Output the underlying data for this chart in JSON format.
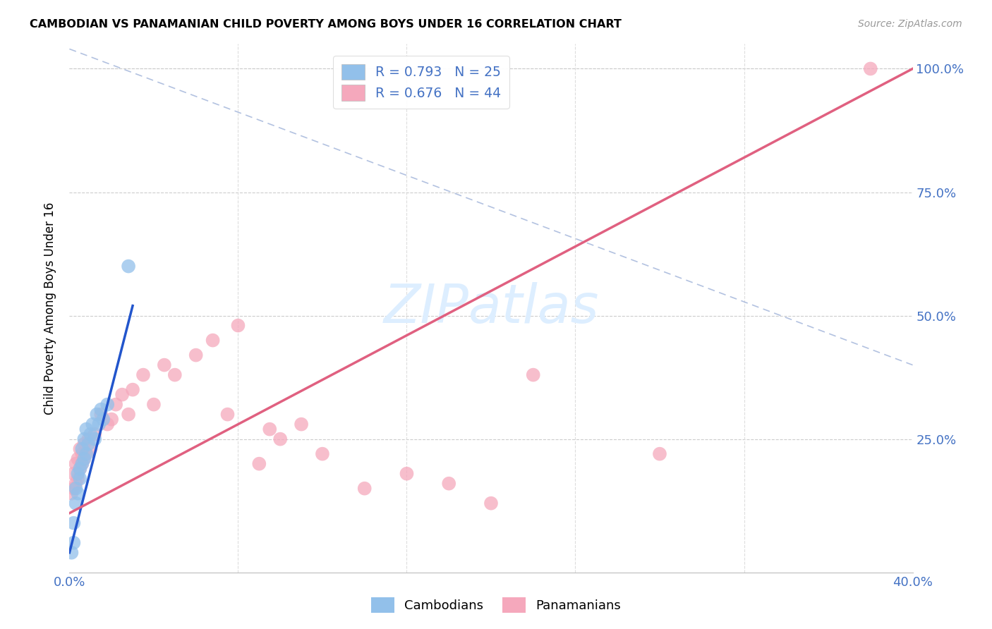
{
  "title": "CAMBODIAN VS PANAMANIAN CHILD POVERTY AMONG BOYS UNDER 16 CORRELATION CHART",
  "source": "Source: ZipAtlas.com",
  "ylabel": "Child Poverty Among Boys Under 16",
  "xlim": [
    0.0,
    0.4
  ],
  "ylim": [
    -0.02,
    1.05
  ],
  "xtick_positions": [
    0.0,
    0.08,
    0.16,
    0.24,
    0.32,
    0.4
  ],
  "xtick_labels": [
    "0.0%",
    "",
    "",
    "",
    "",
    "40.0%"
  ],
  "ytick_positions": [
    0.0,
    0.25,
    0.5,
    0.75,
    1.0
  ],
  "ytick_labels_right": [
    "",
    "25.0%",
    "50.0%",
    "75.0%",
    "100.0%"
  ],
  "cambodian_color": "#92C0EA",
  "panamanian_color": "#F5A8BC",
  "cambodian_line_color": "#2255CC",
  "panamanian_line_color": "#E06080",
  "reference_line_color": "#AABBDD",
  "watermark": "ZIPatlas",
  "camb_line_x0": 0.0,
  "camb_line_y0": 0.02,
  "camb_line_x1": 0.03,
  "camb_line_y1": 0.52,
  "pan_line_x0": 0.0,
  "pan_line_y0": 0.1,
  "pan_line_x1": 0.4,
  "pan_line_y1": 1.0,
  "ref_line_x0": 0.0,
  "ref_line_y0": 1.04,
  "ref_line_x1": 0.4,
  "ref_line_y1": 0.4,
  "camb_x": [
    0.001,
    0.002,
    0.002,
    0.003,
    0.003,
    0.004,
    0.004,
    0.005,
    0.005,
    0.006,
    0.006,
    0.007,
    0.007,
    0.008,
    0.008,
    0.009,
    0.01,
    0.011,
    0.012,
    0.013,
    0.014,
    0.015,
    0.016,
    0.018,
    0.028
  ],
  "camb_y": [
    0.02,
    0.04,
    0.08,
    0.12,
    0.15,
    0.14,
    0.18,
    0.17,
    0.19,
    0.2,
    0.23,
    0.21,
    0.25,
    0.22,
    0.27,
    0.24,
    0.26,
    0.28,
    0.25,
    0.3,
    0.28,
    0.31,
    0.29,
    0.32,
    0.6
  ],
  "pan_x": [
    0.001,
    0.002,
    0.002,
    0.003,
    0.003,
    0.004,
    0.004,
    0.005,
    0.005,
    0.006,
    0.006,
    0.007,
    0.007,
    0.008,
    0.009,
    0.01,
    0.012,
    0.015,
    0.018,
    0.02,
    0.022,
    0.025,
    0.028,
    0.03,
    0.035,
    0.04,
    0.045,
    0.05,
    0.06,
    0.068,
    0.075,
    0.08,
    0.09,
    0.095,
    0.1,
    0.11,
    0.12,
    0.14,
    0.16,
    0.18,
    0.2,
    0.22,
    0.28,
    0.38
  ],
  "pan_y": [
    0.14,
    0.15,
    0.18,
    0.16,
    0.2,
    0.17,
    0.21,
    0.19,
    0.23,
    0.2,
    0.22,
    0.21,
    0.24,
    0.22,
    0.25,
    0.23,
    0.26,
    0.3,
    0.28,
    0.29,
    0.32,
    0.34,
    0.3,
    0.35,
    0.38,
    0.32,
    0.4,
    0.38,
    0.42,
    0.45,
    0.3,
    0.48,
    0.2,
    0.27,
    0.25,
    0.28,
    0.22,
    0.15,
    0.18,
    0.16,
    0.12,
    0.38,
    0.22,
    1.0
  ]
}
